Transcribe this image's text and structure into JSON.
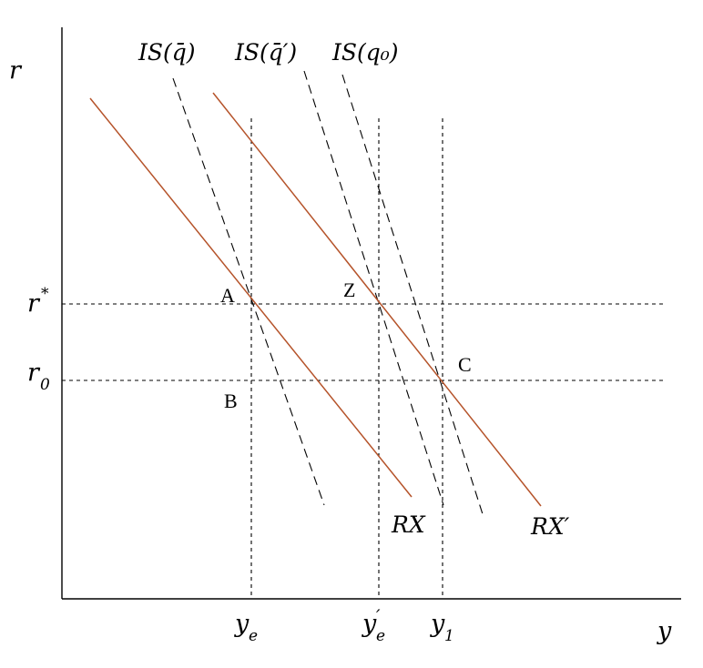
{
  "axes": {
    "y_axis_label": "r",
    "x_axis_label": "y"
  },
  "y_ticks": {
    "r_star": {
      "base": "r",
      "sup": "*"
    },
    "r_0": {
      "base": "r",
      "sub": "0"
    }
  },
  "x_ticks": {
    "y_e": {
      "base": "y",
      "sub": "e"
    },
    "y_e_prime": {
      "base": "y",
      "prime": "′",
      "sub": "e"
    },
    "y_1": {
      "base": "y",
      "sub": "1"
    }
  },
  "is_curves": [
    {
      "label": "IS(q̄)"
    },
    {
      "label": "IS(q̄′)"
    },
    {
      "label": "IS(q₀)"
    }
  ],
  "rx_curves": [
    {
      "label": "RX"
    },
    {
      "label": "RX′"
    }
  ],
  "points": {
    "A": "A",
    "B": "B",
    "Z": "Z",
    "C": "C"
  },
  "colors": {
    "rx_curve": "#b5532a",
    "axes": "#000000"
  }
}
